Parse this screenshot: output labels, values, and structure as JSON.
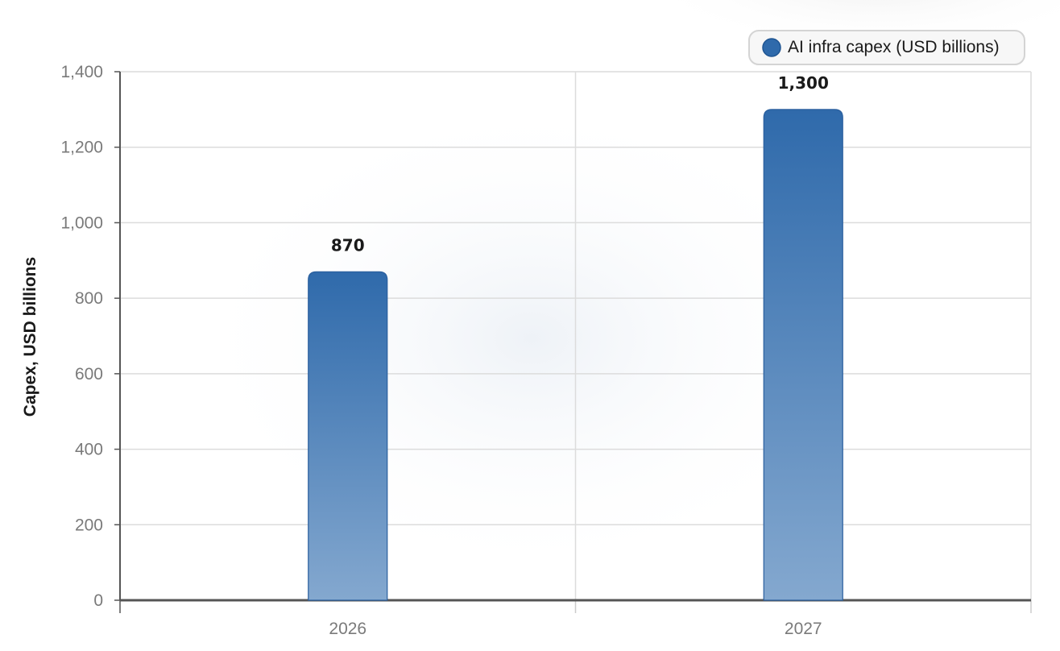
{
  "chart_data": {
    "type": "bar",
    "categories": [
      "2026",
      "2027"
    ],
    "series": [
      {
        "name": "AI infra capex (USD billions)",
        "values": [
          870,
          1300
        ],
        "data_labels": [
          "870",
          "1,300"
        ],
        "color": "#2f6aab"
      }
    ],
    "ylabel": "Capex, USD billions",
    "xlabel": "",
    "ylim": [
      0,
      1400
    ],
    "yticks": [
      0,
      200,
      400,
      600,
      800,
      1000,
      1200,
      1400
    ],
    "ytick_labels": [
      "0",
      "200",
      "400",
      "600",
      "800",
      "1,000",
      "1,200",
      "1,400"
    ],
    "grid": true,
    "legend_position": "top-right"
  },
  "colors": {
    "bar_top": "#2f6aab",
    "bar_bottom": "#84a8cf",
    "bar_stroke": "#2a5f9e",
    "legend_marker": "#2f6aab",
    "gridline": "#dcdcdc",
    "axis": "#555555"
  }
}
